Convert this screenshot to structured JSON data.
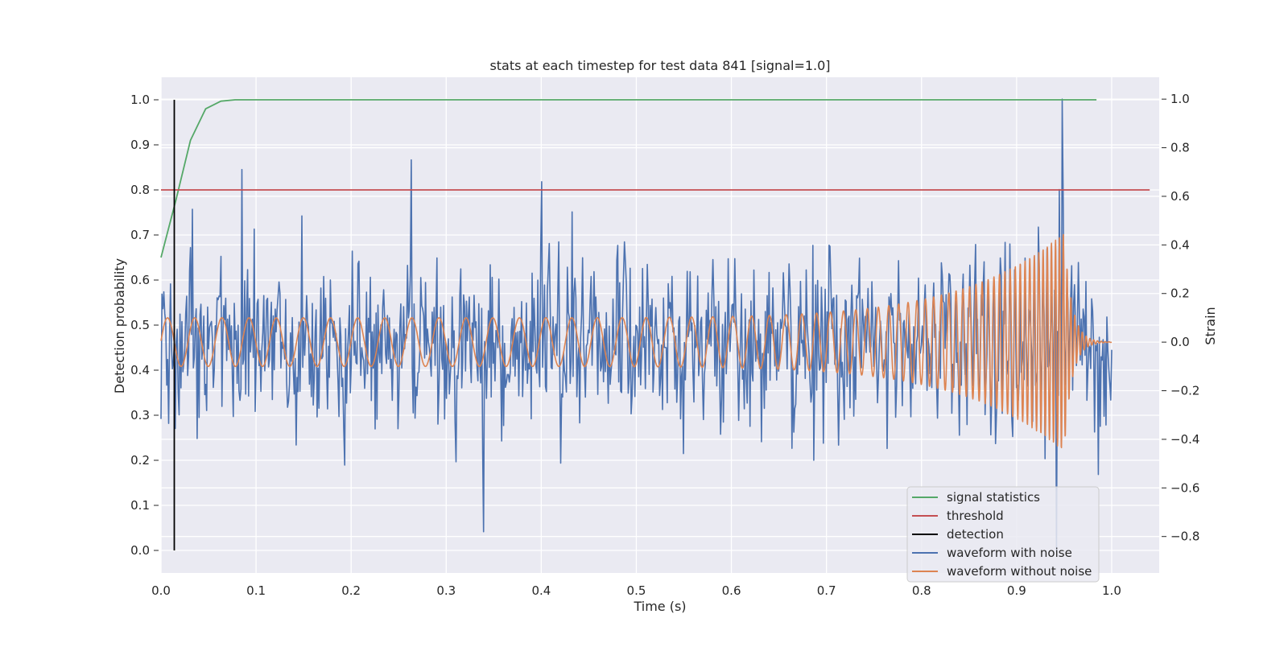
{
  "chart_data": {
    "type": "line",
    "title": "stats at each timestep for test data 841 [signal=1.0]",
    "xlabel": "Time (s)",
    "ylabel": "Detection probability",
    "ylabel_right": "Strain",
    "xlim": [
      0.0,
      1.05
    ],
    "ylim": [
      -0.05,
      1.05
    ],
    "ylim_right": [
      -0.95,
      1.09
    ],
    "xticks": [
      0.0,
      0.1,
      0.2,
      0.3,
      0.4,
      0.5,
      0.6,
      0.7,
      0.8,
      0.9,
      1.0
    ],
    "yticks": [
      0.0,
      0.1,
      0.2,
      0.3,
      0.4,
      0.5,
      0.6,
      0.7,
      0.8,
      0.9,
      1.0
    ],
    "yticks_right": [
      -0.8,
      -0.6,
      -0.4,
      -0.2,
      0.0,
      0.2,
      0.4,
      0.6,
      0.8,
      1.0
    ],
    "xtick_labels": [
      "0.0",
      "0.1",
      "0.2",
      "0.3",
      "0.4",
      "0.5",
      "0.6",
      "0.7",
      "0.8",
      "0.9",
      "1.0"
    ],
    "ytick_labels": [
      "0.0",
      "0.1",
      "0.2",
      "0.3",
      "0.4",
      "0.5",
      "0.6",
      "0.7",
      "0.8",
      "0.9",
      "1.0"
    ],
    "ytick_labels_right": [
      "−0.8",
      "−0.6",
      "−0.4",
      "−0.2",
      "0.0",
      "0.2",
      "0.4",
      "0.6",
      "0.8",
      "1.0"
    ],
    "grid": true,
    "legend_position": "bottom-right",
    "colors": {
      "background": "#eaeaf2",
      "grid": "#ffffff",
      "signal_statistics": "#55a868",
      "threshold": "#c44e52",
      "detection": "#000000",
      "waveform_with_noise": "#4c72b0",
      "waveform_without_noise": "#dd8452"
    },
    "series": [
      {
        "name": "signal statistics",
        "axis": "left",
        "x": [
          0.0,
          0.016,
          0.031,
          0.047,
          0.063,
          0.078,
          0.094,
          0.11,
          0.2,
          0.4,
          0.6,
          0.8,
          0.984
        ],
        "y": [
          0.65,
          0.78,
          0.91,
          0.98,
          0.997,
          1.0,
          1.0,
          1.0,
          1.0,
          1.0,
          1.0,
          1.0,
          1.0
        ]
      },
      {
        "name": "threshold",
        "axis": "left",
        "x": [
          0.0,
          1.04
        ],
        "y": [
          0.8,
          0.8
        ]
      },
      {
        "name": "detection",
        "axis": "left",
        "x": [
          0.014,
          0.014
        ],
        "y": [
          0.0,
          1.0
        ]
      },
      {
        "name": "waveform with noise",
        "axis": "right",
        "generated": true,
        "x_range": [
          0.0,
          1.0
        ],
        "n_points": 1000,
        "noise_std": 0.17,
        "notable_peaks": [
          {
            "x": 0.085,
            "y": 0.71
          },
          {
            "x": 0.263,
            "y": 0.75
          },
          {
            "x": 0.339,
            "y": -0.78
          },
          {
            "x": 0.4,
            "y": 0.66
          },
          {
            "x": 0.948,
            "y": 1.0
          },
          {
            "x": 0.942,
            "y": -0.86
          }
        ]
      },
      {
        "name": "waveform without noise",
        "axis": "right",
        "generated": true,
        "x_range": [
          0.0,
          1.0
        ],
        "amplitude_start": 0.1,
        "amplitude_peak": 0.45,
        "merger_time": 0.95,
        "frequency_start_hz": 35,
        "frequency_end_hz": 250
      }
    ]
  }
}
